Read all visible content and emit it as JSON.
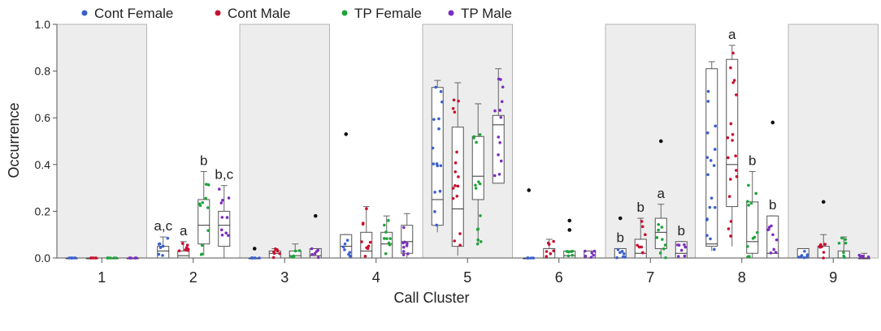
{
  "chart_data": {
    "type": "box",
    "xlabel": "Call Cluster",
    "ylabel": "Occurrence",
    "ylim": [
      0.0,
      1.0
    ],
    "yticks": [
      "0.0",
      "0.2",
      "0.4",
      "0.6",
      "0.8",
      "1.0"
    ],
    "ytick_values": [
      0.0,
      0.2,
      0.4,
      0.6,
      0.8,
      1.0
    ],
    "categories": [
      "1",
      "2",
      "3",
      "4",
      "5",
      "6",
      "7",
      "8",
      "9"
    ],
    "shaded_clusters": [
      1,
      3,
      5,
      7,
      9
    ],
    "legend": [
      {
        "name": "Cont Female",
        "color": "#3a5fcd"
      },
      {
        "name": "Cont Male",
        "color": "#c8102e"
      },
      {
        "name": "TP Female",
        "color": "#1fa33a"
      },
      {
        "name": "TP Male",
        "color": "#7b2fbe"
      }
    ],
    "series": [
      {
        "name": "Cont Female",
        "boxes": [
          {
            "min": 0.0,
            "q1": 0.0,
            "median": 0.0,
            "q3": 0.0,
            "max": 0.0
          },
          {
            "min": 0.0,
            "q1": 0.0,
            "median": 0.03,
            "q3": 0.05,
            "max": 0.09
          },
          {
            "min": 0.0,
            "q1": 0.0,
            "median": 0.0,
            "q3": 0.0,
            "max": 0.0
          },
          {
            "min": 0.0,
            "q1": 0.0,
            "median": 0.05,
            "q3": 0.1,
            "max": 0.1
          },
          {
            "min": 0.11,
            "q1": 0.14,
            "median": 0.25,
            "q3": 0.73,
            "max": 0.76
          },
          {
            "min": 0.0,
            "q1": 0.0,
            "median": 0.0,
            "q3": 0.0,
            "max": 0.0
          },
          {
            "min": 0.0,
            "q1": 0.0,
            "median": 0.0,
            "q3": 0.04,
            "max": 0.04
          },
          {
            "min": 0.03,
            "q1": 0.05,
            "median": 0.06,
            "q3": 0.81,
            "max": 0.84
          },
          {
            "min": 0.0,
            "q1": 0.0,
            "median": 0.0,
            "q3": 0.04,
            "max": 0.04
          }
        ],
        "outliers": [
          [],
          [],
          [
            0.04
          ],
          [
            0.53
          ],
          [],
          [
            0.29
          ],
          [
            0.17
          ],
          [],
          []
        ]
      },
      {
        "name": "Cont Male",
        "boxes": [
          {
            "min": 0.0,
            "q1": 0.0,
            "median": 0.0,
            "q3": 0.0,
            "max": 0.0
          },
          {
            "min": 0.0,
            "q1": 0.0,
            "median": 0.01,
            "q3": 0.03,
            "max": 0.07
          },
          {
            "min": 0.0,
            "q1": 0.0,
            "median": 0.02,
            "q3": 0.03,
            "max": 0.04
          },
          {
            "min": 0.0,
            "q1": 0.0,
            "median": 0.03,
            "q3": 0.11,
            "max": 0.22
          },
          {
            "min": 0.01,
            "q1": 0.05,
            "median": 0.21,
            "q3": 0.56,
            "max": 0.75
          },
          {
            "min": 0.0,
            "q1": 0.0,
            "median": 0.0,
            "q3": 0.04,
            "max": 0.08
          },
          {
            "min": 0.0,
            "q1": 0.0,
            "median": 0.02,
            "q3": 0.08,
            "max": 0.17
          },
          {
            "min": 0.05,
            "q1": 0.22,
            "median": 0.4,
            "q3": 0.85,
            "max": 0.91
          },
          {
            "min": 0.0,
            "q1": 0.0,
            "median": 0.0,
            "q3": 0.05,
            "max": 0.1
          }
        ],
        "outliers": [
          [],
          [],
          [],
          [],
          [],
          [],
          [],
          [],
          [
            0.24
          ]
        ]
      },
      {
        "name": "TP Female",
        "boxes": [
          {
            "min": 0.0,
            "q1": 0.0,
            "median": 0.0,
            "q3": 0.0,
            "max": 0.0
          },
          {
            "min": 0.01,
            "q1": 0.06,
            "median": 0.14,
            "q3": 0.25,
            "max": 0.37
          },
          {
            "min": 0.0,
            "q1": 0.0,
            "median": 0.01,
            "q3": 0.03,
            "max": 0.06
          },
          {
            "min": 0.0,
            "q1": 0.0,
            "median": 0.06,
            "q3": 0.11,
            "max": 0.18
          },
          {
            "min": 0.06,
            "q1": 0.25,
            "median": 0.35,
            "q3": 0.52,
            "max": 0.66
          },
          {
            "min": 0.0,
            "q1": 0.0,
            "median": 0.01,
            "q3": 0.03,
            "max": 0.03
          },
          {
            "min": 0.0,
            "q1": 0.04,
            "median": 0.11,
            "q3": 0.17,
            "max": 0.23
          },
          {
            "min": 0.0,
            "q1": 0.02,
            "median": 0.07,
            "q3": 0.24,
            "max": 0.37
          },
          {
            "min": 0.0,
            "q1": 0.0,
            "median": 0.0,
            "q3": 0.03,
            "max": 0.09
          }
        ],
        "outliers": [
          [],
          [],
          [],
          [],
          [],
          [
            0.12,
            0.16
          ],
          [
            0.5
          ],
          [],
          []
        ]
      },
      {
        "name": "TP Male",
        "boxes": [
          {
            "min": 0.0,
            "q1": 0.0,
            "median": 0.0,
            "q3": 0.0,
            "max": 0.0
          },
          {
            "min": 0.0,
            "q1": 0.05,
            "median": 0.14,
            "q3": 0.2,
            "max": 0.31
          },
          {
            "min": 0.0,
            "q1": 0.0,
            "median": 0.01,
            "q3": 0.04,
            "max": 0.04
          },
          {
            "min": 0.0,
            "q1": 0.02,
            "median": 0.07,
            "q3": 0.14,
            "max": 0.19
          },
          {
            "min": 0.32,
            "q1": 0.32,
            "median": 0.57,
            "q3": 0.61,
            "max": 0.81
          },
          {
            "min": 0.0,
            "q1": 0.0,
            "median": 0.0,
            "q3": 0.03,
            "max": 0.03
          },
          {
            "min": 0.0,
            "q1": 0.0,
            "median": 0.02,
            "q3": 0.07,
            "max": 0.07
          },
          {
            "min": 0.0,
            "q1": 0.0,
            "median": 0.02,
            "q3": 0.18,
            "max": 0.18
          },
          {
            "min": 0.0,
            "q1": 0.0,
            "median": 0.0,
            "q3": 0.0,
            "max": 0.02
          }
        ],
        "outliers": [
          [],
          [],
          [
            0.18
          ],
          [],
          [],
          [],
          [],
          [
            0.58
          ],
          []
        ]
      }
    ],
    "annotations": [
      {
        "cluster": 2,
        "series": "Cont Female",
        "text": "a,c"
      },
      {
        "cluster": 2,
        "series": "Cont Male",
        "text": "a"
      },
      {
        "cluster": 2,
        "series": "TP Female",
        "text": "b"
      },
      {
        "cluster": 2,
        "series": "TP Male",
        "text": "b,c"
      },
      {
        "cluster": 7,
        "series": "Cont Female",
        "text": "b"
      },
      {
        "cluster": 7,
        "series": "Cont Male",
        "text": "b"
      },
      {
        "cluster": 7,
        "series": "TP Female",
        "text": "a"
      },
      {
        "cluster": 7,
        "series": "TP Male",
        "text": "b"
      },
      {
        "cluster": 8,
        "series": "Cont Male",
        "text": "a"
      },
      {
        "cluster": 8,
        "series": "TP Female",
        "text": "b"
      },
      {
        "cluster": 8,
        "series": "TP Male",
        "text": "b"
      }
    ]
  }
}
